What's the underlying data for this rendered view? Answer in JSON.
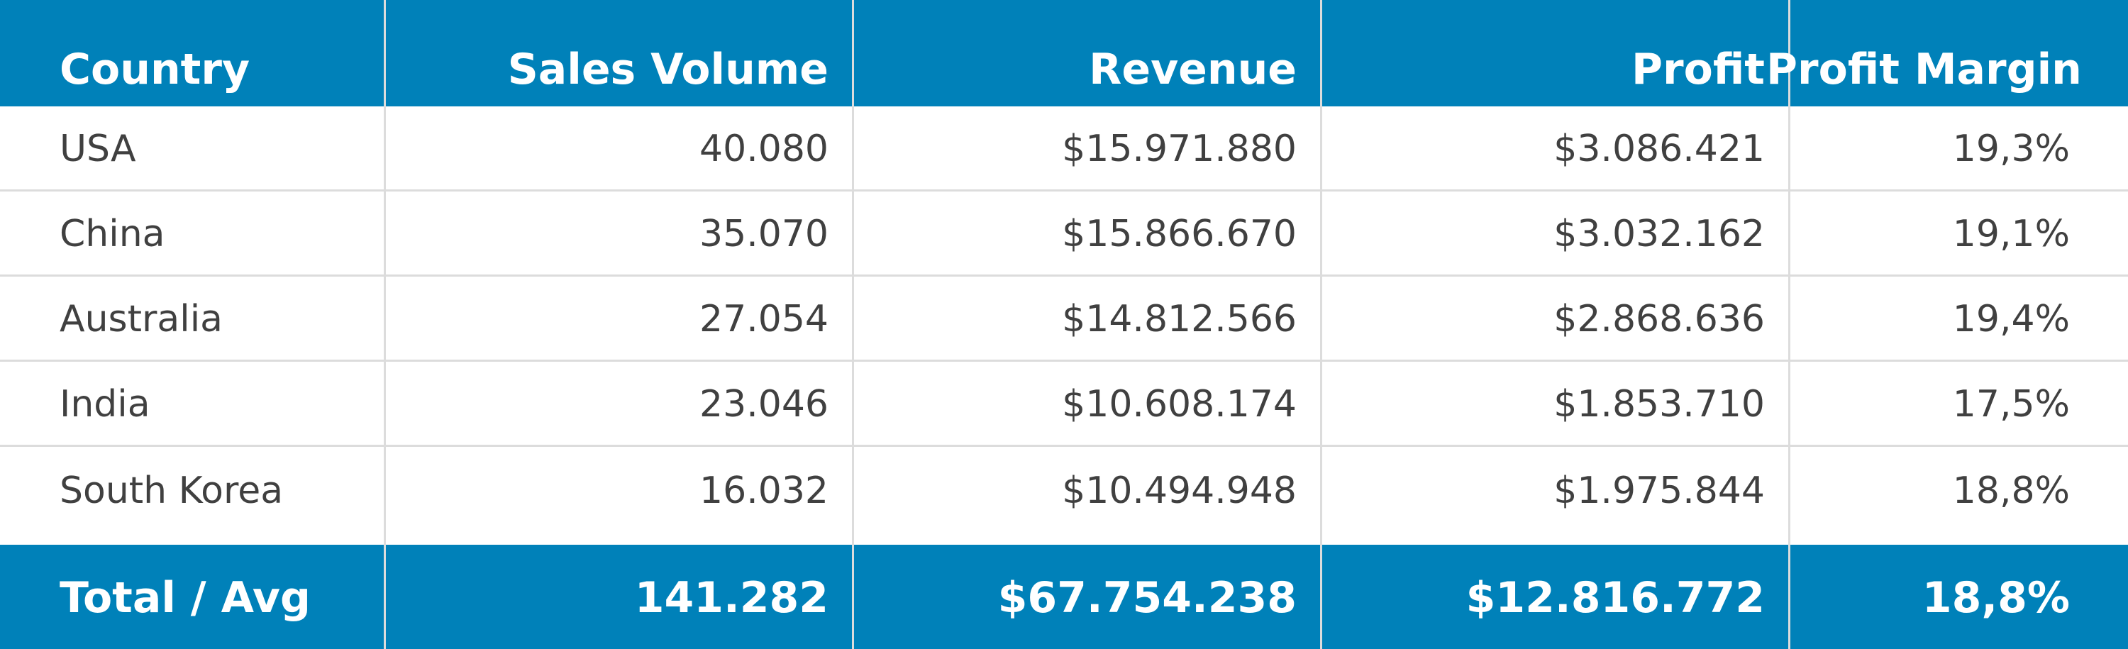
{
  "chart_data": {
    "type": "table",
    "columns": [
      "Country",
      "Sales Volume",
      "Revenue",
      "Profit",
      "Profit Margin"
    ],
    "rows": [
      [
        "USA",
        "40.080",
        "$15.971.880",
        "$3.086.421",
        "19,3%"
      ],
      [
        "China",
        "35.070",
        "$15.866.670",
        "$3.032.162",
        "19,1%"
      ],
      [
        "Australia",
        "27.054",
        "$14.812.566",
        "$2.868.636",
        "19,4%"
      ],
      [
        "India",
        "23.046",
        "$10.608.174",
        "$1.853.710",
        "17,5%"
      ],
      [
        "South Korea",
        "16.032",
        "$10.494.948",
        "$1.975.844",
        "18,8%"
      ]
    ],
    "footer": [
      "Total / Avg",
      "141.282",
      "$67.754.238",
      "$12.816.772",
      "18,8%"
    ]
  },
  "colors": {
    "header_background": "#0081b9",
    "header_text": "#ffffff",
    "body_text": "#404040",
    "grid_line": "#dcdcdc"
  }
}
